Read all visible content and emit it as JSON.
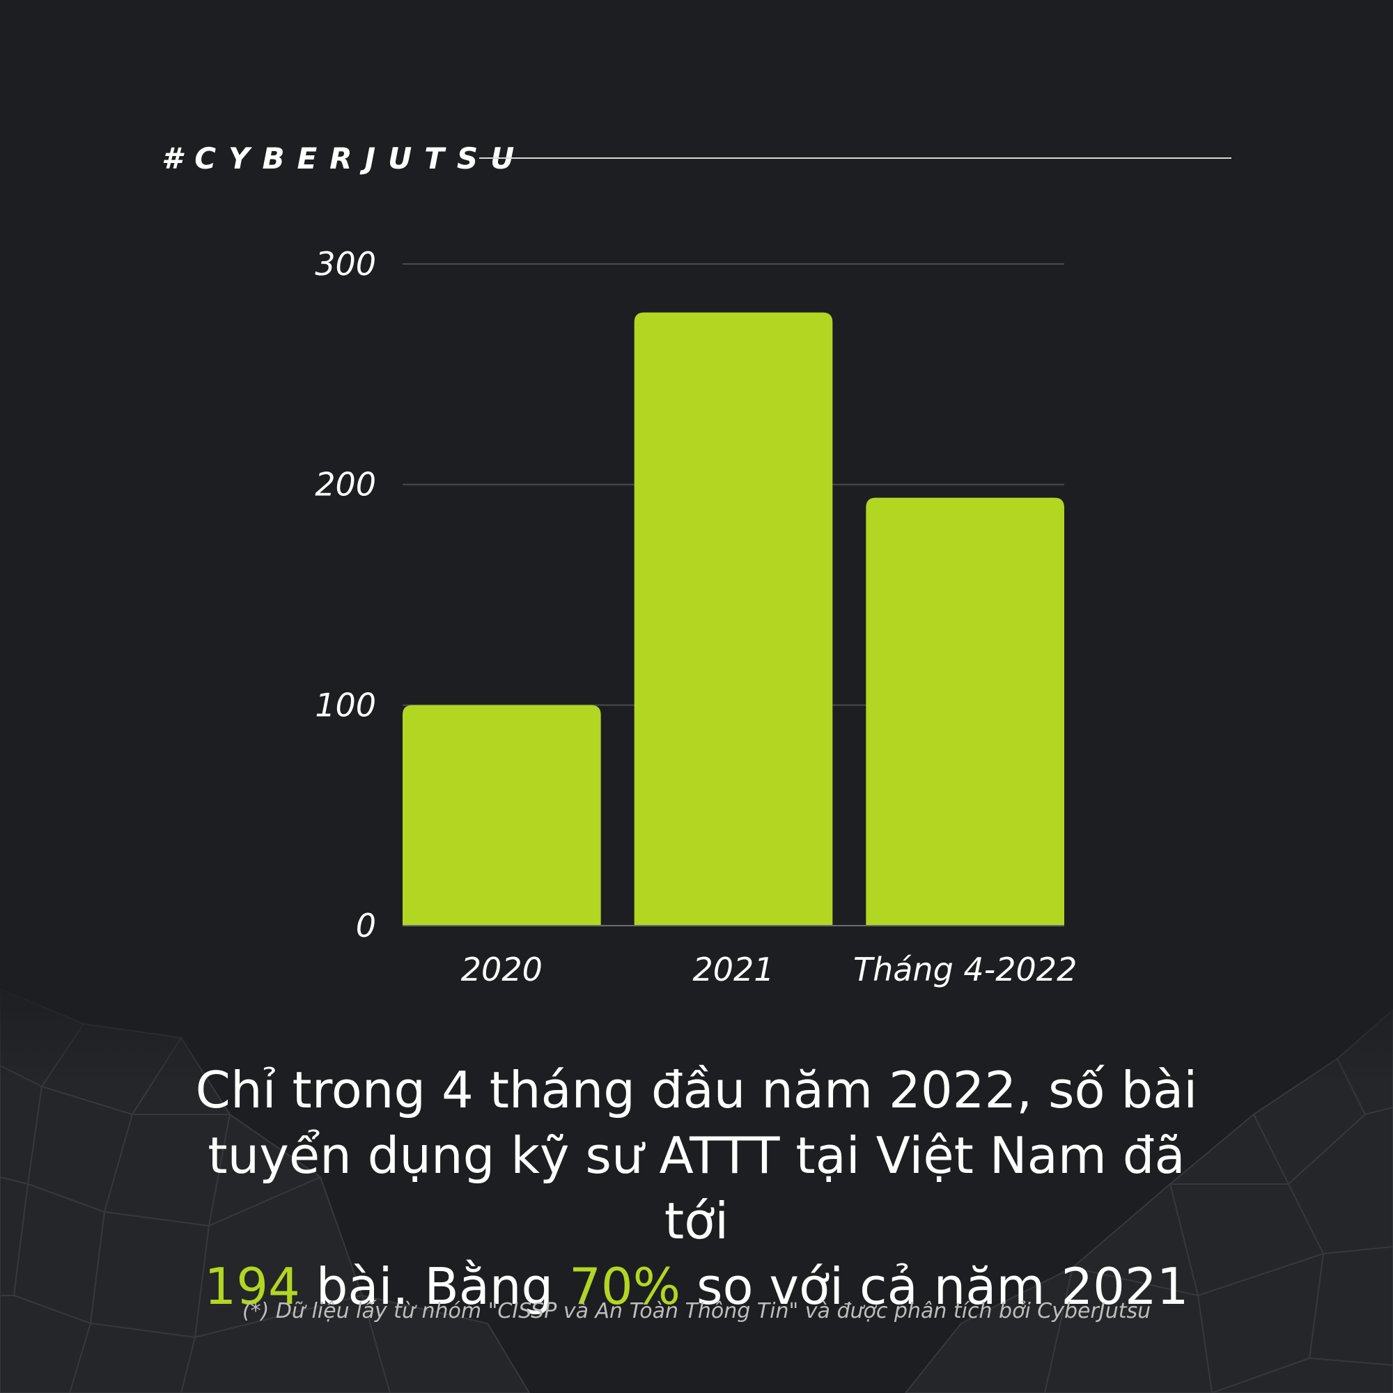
{
  "brand": {
    "hashtag": "#CYBERJUTSU"
  },
  "colors": {
    "background": "#1d1e21",
    "bar": "#b3d622",
    "highlight": "#b3d622",
    "grid": "#4a4b4f"
  },
  "chart_data": {
    "type": "bar",
    "categories": [
      "2020",
      "2021",
      "Tháng 4-2022"
    ],
    "values": [
      100,
      278,
      194
    ],
    "ylim": [
      0,
      300
    ],
    "yticks": [
      0,
      100,
      200,
      300
    ],
    "grid": true,
    "title": "",
    "xlabel": "",
    "ylabel": ""
  },
  "headline": {
    "line1": "Chỉ trong 4 tháng đầu năm 2022, số bài",
    "line2": "tuyển dụng kỹ sư ATTT tại Việt Nam đã tới",
    "line3_value": "194",
    "line3_mid": " bài. Bằng ",
    "line3_percent": "70%",
    "line3_end": " so với cả năm 2021"
  },
  "footnote": "(*) Dữ liệu lấy từ nhóm \"CISSP và An Toàn Thông Tin\" và được phân tích bởi CyberJutsu"
}
